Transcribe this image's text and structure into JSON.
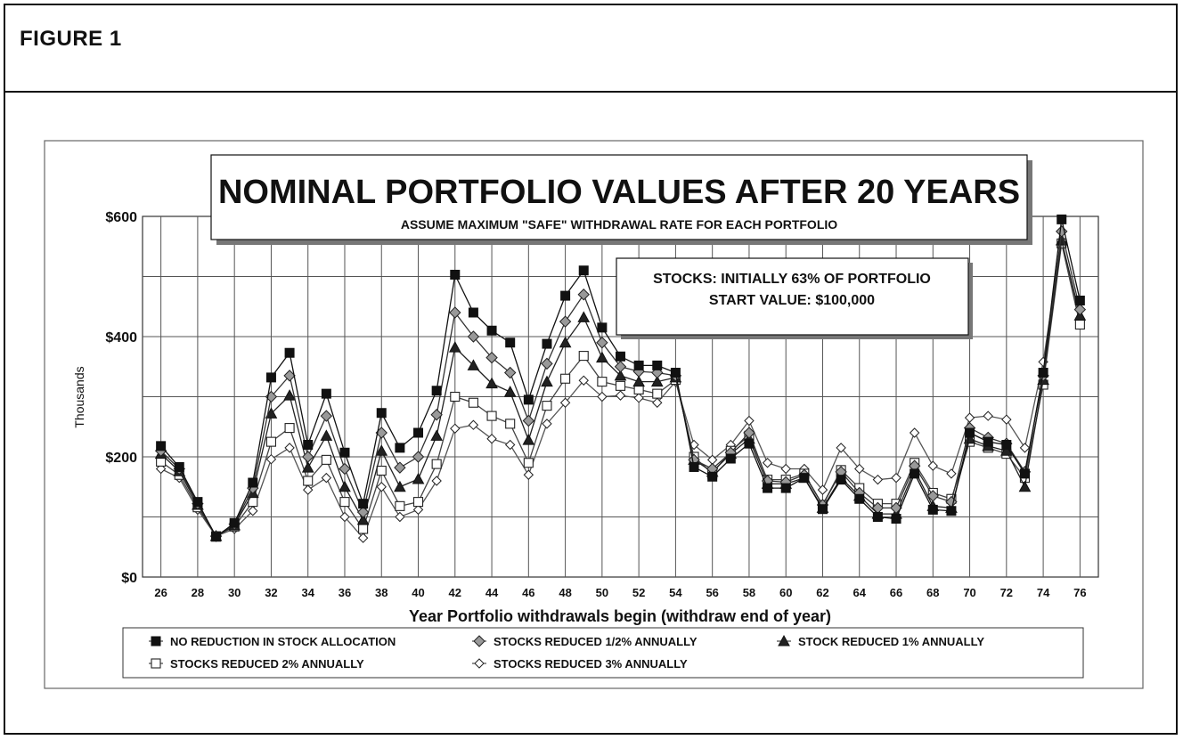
{
  "figure_label": "FIGURE 1",
  "chart_data": {
    "type": "line",
    "title": "NOMINAL PORTFOLIO VALUES AFTER 20 YEARS",
    "subtitle": "ASSUME MAXIMUM \"SAFE\" WITHDRAWAL RATE FOR EACH PORTFOLIO",
    "annotation": [
      "STOCKS: INITIALLY 63% OF PORTFOLIO",
      "START VALUE: $100,000"
    ],
    "xlabel": "Year Portfolio withdrawals begin (withdraw end of year)",
    "ylabel": "Thousands",
    "ylim": [
      0,
      600
    ],
    "yticks": [
      0,
      200,
      400,
      600
    ],
    "ytick_labels": [
      "$0",
      "$200",
      "$400",
      "$600"
    ],
    "xlim": [
      25,
      77
    ],
    "xticks": [
      26,
      28,
      30,
      32,
      34,
      36,
      38,
      40,
      42,
      44,
      46,
      48,
      50,
      52,
      54,
      56,
      58,
      60,
      62,
      64,
      66,
      68,
      70,
      72,
      74,
      76
    ],
    "x": [
      26,
      27,
      28,
      29,
      30,
      31,
      32,
      33,
      34,
      35,
      36,
      37,
      38,
      39,
      40,
      41,
      42,
      43,
      44,
      45,
      46,
      47,
      48,
      49,
      50,
      51,
      52,
      53,
      54,
      55,
      56,
      57,
      58,
      59,
      60,
      61,
      62,
      63,
      64,
      65,
      66,
      67,
      68,
      69,
      70,
      71,
      72,
      73,
      74,
      75,
      76
    ],
    "grid": true,
    "legend_position": "bottom",
    "series": [
      {
        "name": "NO REDUCTION IN STOCK ALLOCATION",
        "marker": "filled-square",
        "values": [
          218,
          183,
          125,
          67,
          90,
          157,
          332,
          373,
          220,
          305,
          207,
          122,
          273,
          215,
          240,
          310,
          503,
          440,
          410,
          390,
          295,
          388,
          468,
          510,
          415,
          367,
          352,
          352,
          340,
          183,
          167,
          197,
          222,
          148,
          148,
          165,
          113,
          162,
          130,
          100,
          97,
          172,
          112,
          110,
          240,
          225,
          220,
          172,
          340,
          595,
          460
        ]
      },
      {
        "name": "STOCKS REDUCED 1/2% ANNUALLY",
        "marker": "gray-diamond",
        "values": [
          210,
          180,
          122,
          68,
          88,
          148,
          300,
          335,
          200,
          268,
          180,
          108,
          240,
          182,
          200,
          270,
          440,
          400,
          365,
          340,
          260,
          355,
          425,
          470,
          390,
          350,
          342,
          340,
          335,
          195,
          180,
          207,
          240,
          160,
          158,
          170,
          120,
          175,
          140,
          115,
          115,
          185,
          135,
          125,
          248,
          232,
          222,
          175,
          335,
          575,
          445
        ]
      },
      {
        "name": "STOCK REDUCED 1% ANNUALLY",
        "marker": "triangle",
        "values": [
          205,
          176,
          120,
          68,
          86,
          140,
          272,
          302,
          182,
          235,
          150,
          95,
          210,
          150,
          163,
          235,
          382,
          352,
          322,
          308,
          228,
          325,
          390,
          432,
          365,
          335,
          325,
          325,
          332,
          195,
          175,
          205,
          230,
          155,
          155,
          165,
          115,
          165,
          135,
          105,
          105,
          178,
          118,
          115,
          230,
          218,
          210,
          150,
          328,
          560,
          435
        ]
      },
      {
        "name": "STOCKS REDUCED 2% ANNUALLY",
        "marker": "open-square",
        "values": [
          192,
          170,
          116,
          68,
          84,
          125,
          225,
          248,
          160,
          195,
          125,
          80,
          177,
          118,
          125,
          188,
          300,
          290,
          268,
          255,
          190,
          285,
          330,
          368,
          325,
          318,
          312,
          305,
          328,
          200,
          172,
          210,
          235,
          162,
          162,
          172,
          120,
          178,
          148,
          122,
          122,
          190,
          140,
          130,
          225,
          215,
          205,
          165,
          320,
          555,
          420
        ]
      },
      {
        "name": "STOCKS REDUCED 3% ANNUALLY",
        "marker": "open-diamond",
        "values": [
          180,
          165,
          112,
          68,
          80,
          110,
          196,
          215,
          145,
          165,
          100,
          65,
          150,
          100,
          112,
          160,
          247,
          253,
          230,
          220,
          170,
          255,
          290,
          327,
          300,
          302,
          298,
          290,
          325,
          220,
          195,
          220,
          260,
          190,
          180,
          180,
          145,
          215,
          180,
          162,
          165,
          240,
          185,
          172,
          265,
          268,
          262,
          215,
          358,
          560,
          425
        ]
      }
    ]
  }
}
